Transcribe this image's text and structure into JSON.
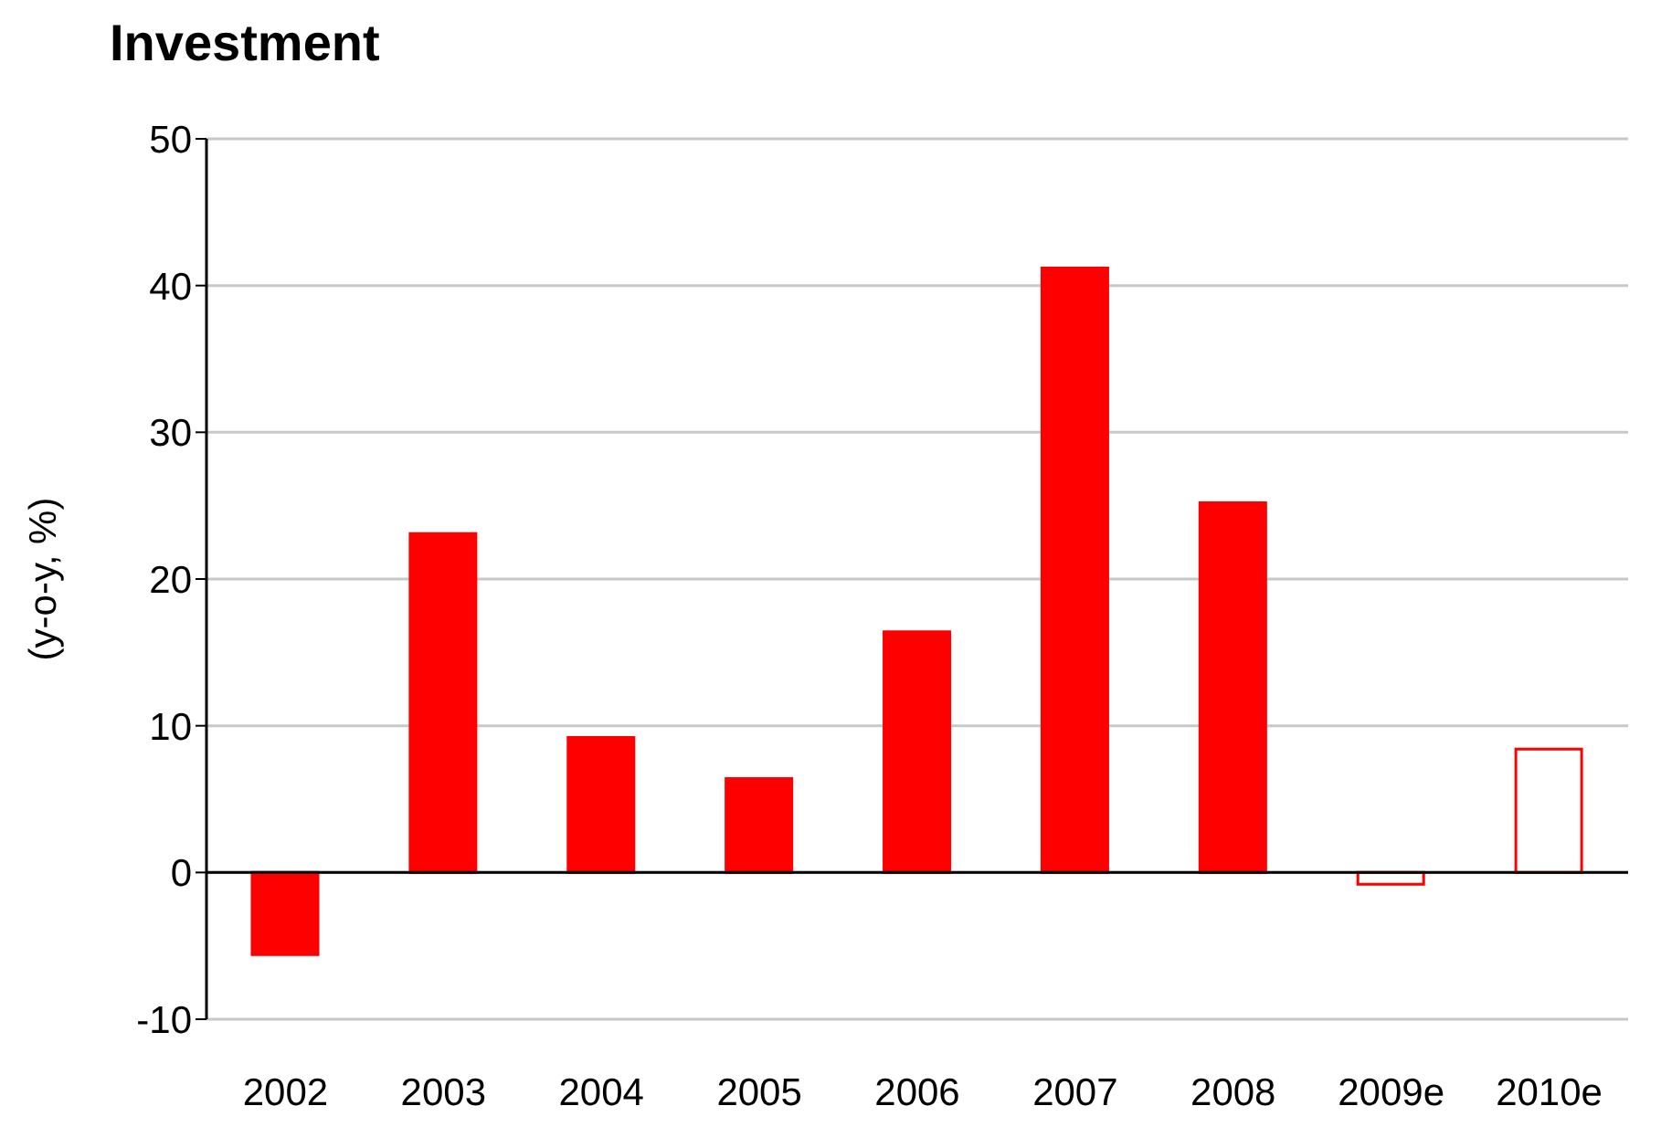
{
  "chart_data": {
    "type": "bar",
    "title": "Investment",
    "ylabel": "(y-o-y, %)",
    "categories": [
      "2002",
      "2003",
      "2004",
      "2005",
      "2006",
      "2007",
      "2008",
      "2009e",
      "2010e"
    ],
    "values": [
      -5.6,
      23.1,
      9.2,
      6.4,
      16.4,
      41.2,
      25.2,
      -0.8,
      8.4
    ],
    "color": "#ff0000",
    "colors": [
      "#ff0000",
      "#ff0000",
      "#ff0000",
      "#ff0000",
      "#ff0000",
      "#ff0000",
      "#ff0000",
      "#ffffff",
      "#ffffff"
    ],
    "ylim": [
      -10,
      50
    ],
    "yticks": [
      -10,
      0,
      10,
      20,
      30,
      40,
      50
    ],
    "grid": "y"
  }
}
